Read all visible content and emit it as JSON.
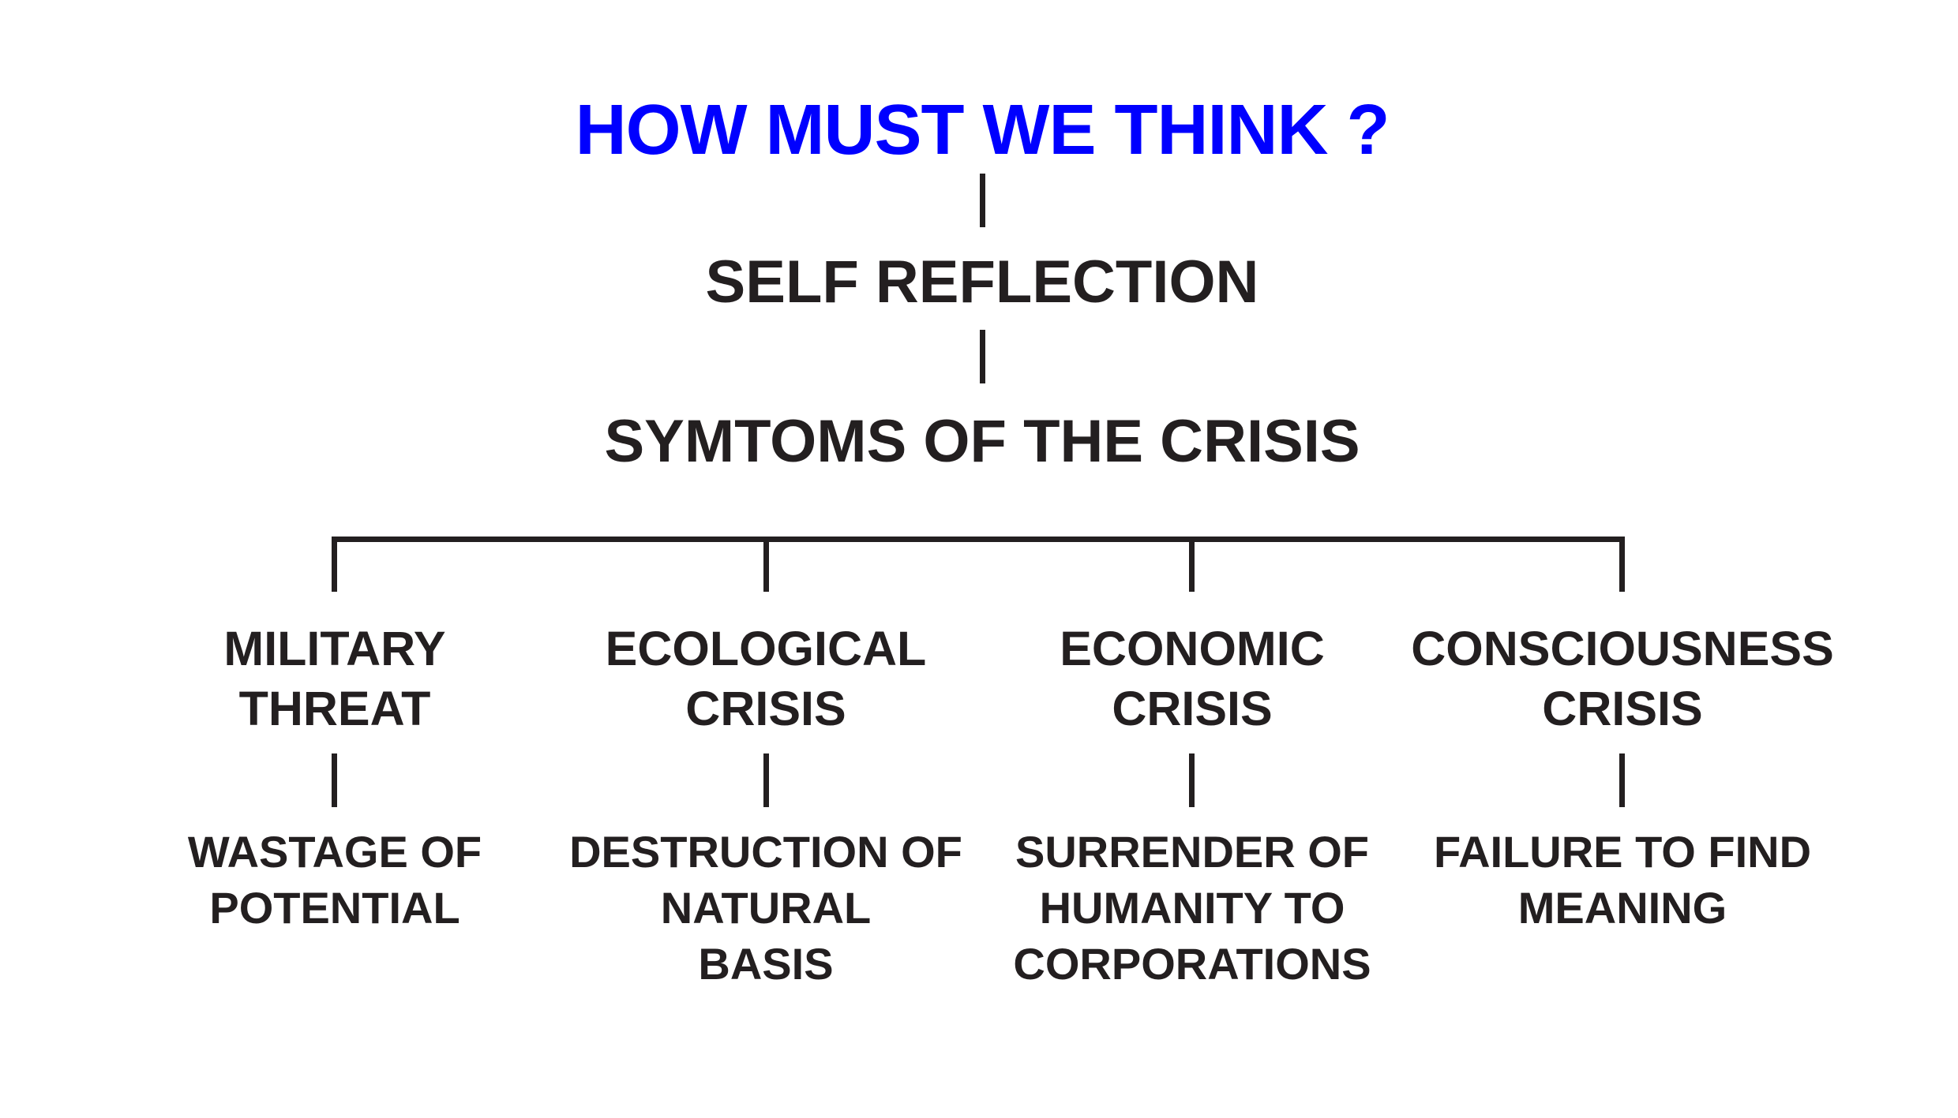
{
  "diagram": {
    "title": "HOW MUST WE THINK ?",
    "level2": "SELF REFLECTION",
    "level3": "SYMTOMS OF THE CRISIS",
    "columns": [
      {
        "category": [
          "MILITARY",
          "THREAT"
        ],
        "effect": [
          "WASTAGE OF",
          "POTENTIAL"
        ]
      },
      {
        "category": [
          "ECOLOGICAL",
          "CRISIS"
        ],
        "effect": [
          "DESTRUCTION OF",
          "NATURAL",
          "BASIS"
        ]
      },
      {
        "category": [
          "ECONOMIC",
          "CRISIS"
        ],
        "effect": [
          "SURRENDER OF",
          "HUMANITY TO",
          "CORPORATIONS"
        ]
      },
      {
        "category": [
          "CONSCIOUSNESS",
          "CRISIS"
        ],
        "effect": [
          "FAILURE TO FIND",
          "MEANING"
        ]
      }
    ],
    "colors": {
      "title": "#0000ff",
      "text": "#231f20",
      "lines": "#231f20",
      "background": "#ffffff"
    }
  }
}
